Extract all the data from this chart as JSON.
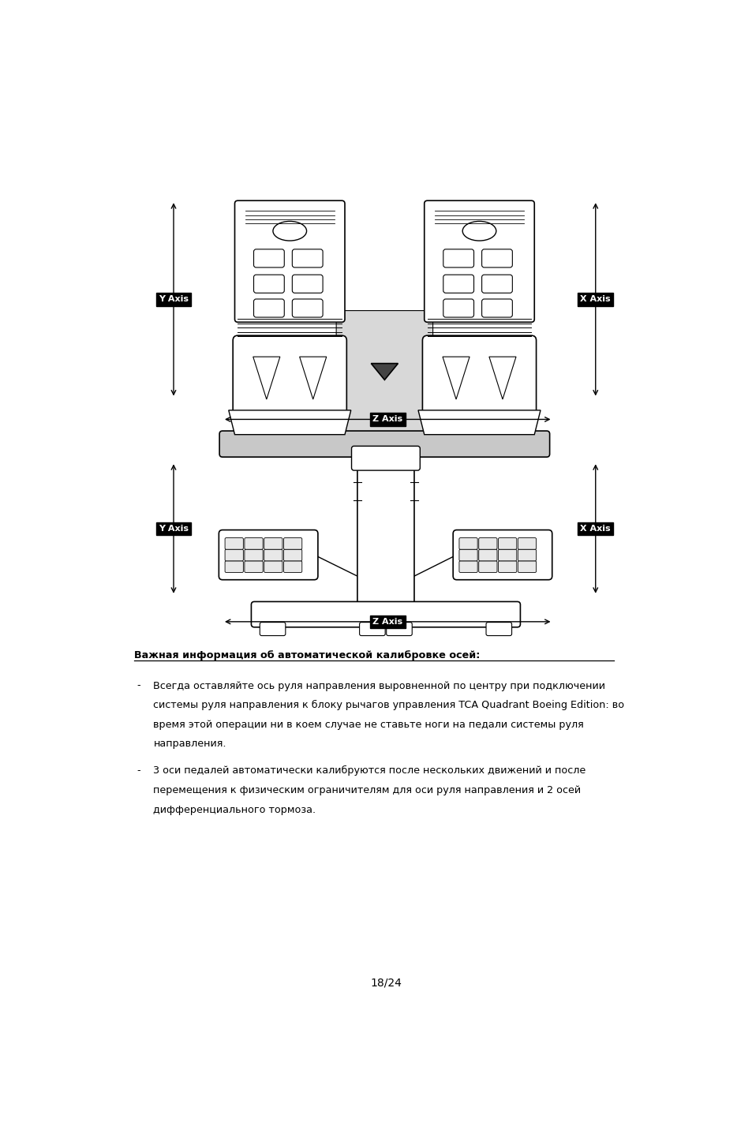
{
  "bg_color": "#ffffff",
  "page_width": 9.54,
  "page_height": 14.32,
  "title_text": "Важная информация об автоматической калибровке осей:",
  "bullet1_line1": "Всегда оставляйте ось руля направления выровненной по центру при подключении",
  "bullet1_line2": "системы руля направления к блоку рычагов управления TCA Quadrant Boeing Edition: во",
  "bullet1_line3": "время этой операции ни в коем случае не ставьте ноги на педали системы руля",
  "bullet1_line4": "направления.",
  "bullet2_line1": "3 оси педалей автоматически калибруются после нескольких движений и после",
  "bullet2_line2": "перемещения к физическим ограничителям для оси руля направления и 2 осей",
  "bullet2_line3": "дифференциального тормоза.",
  "page_number": "18/24",
  "label_y_axis": "Y Axis",
  "label_x_axis": "X Axis",
  "label_z_axis": "Z Axis"
}
